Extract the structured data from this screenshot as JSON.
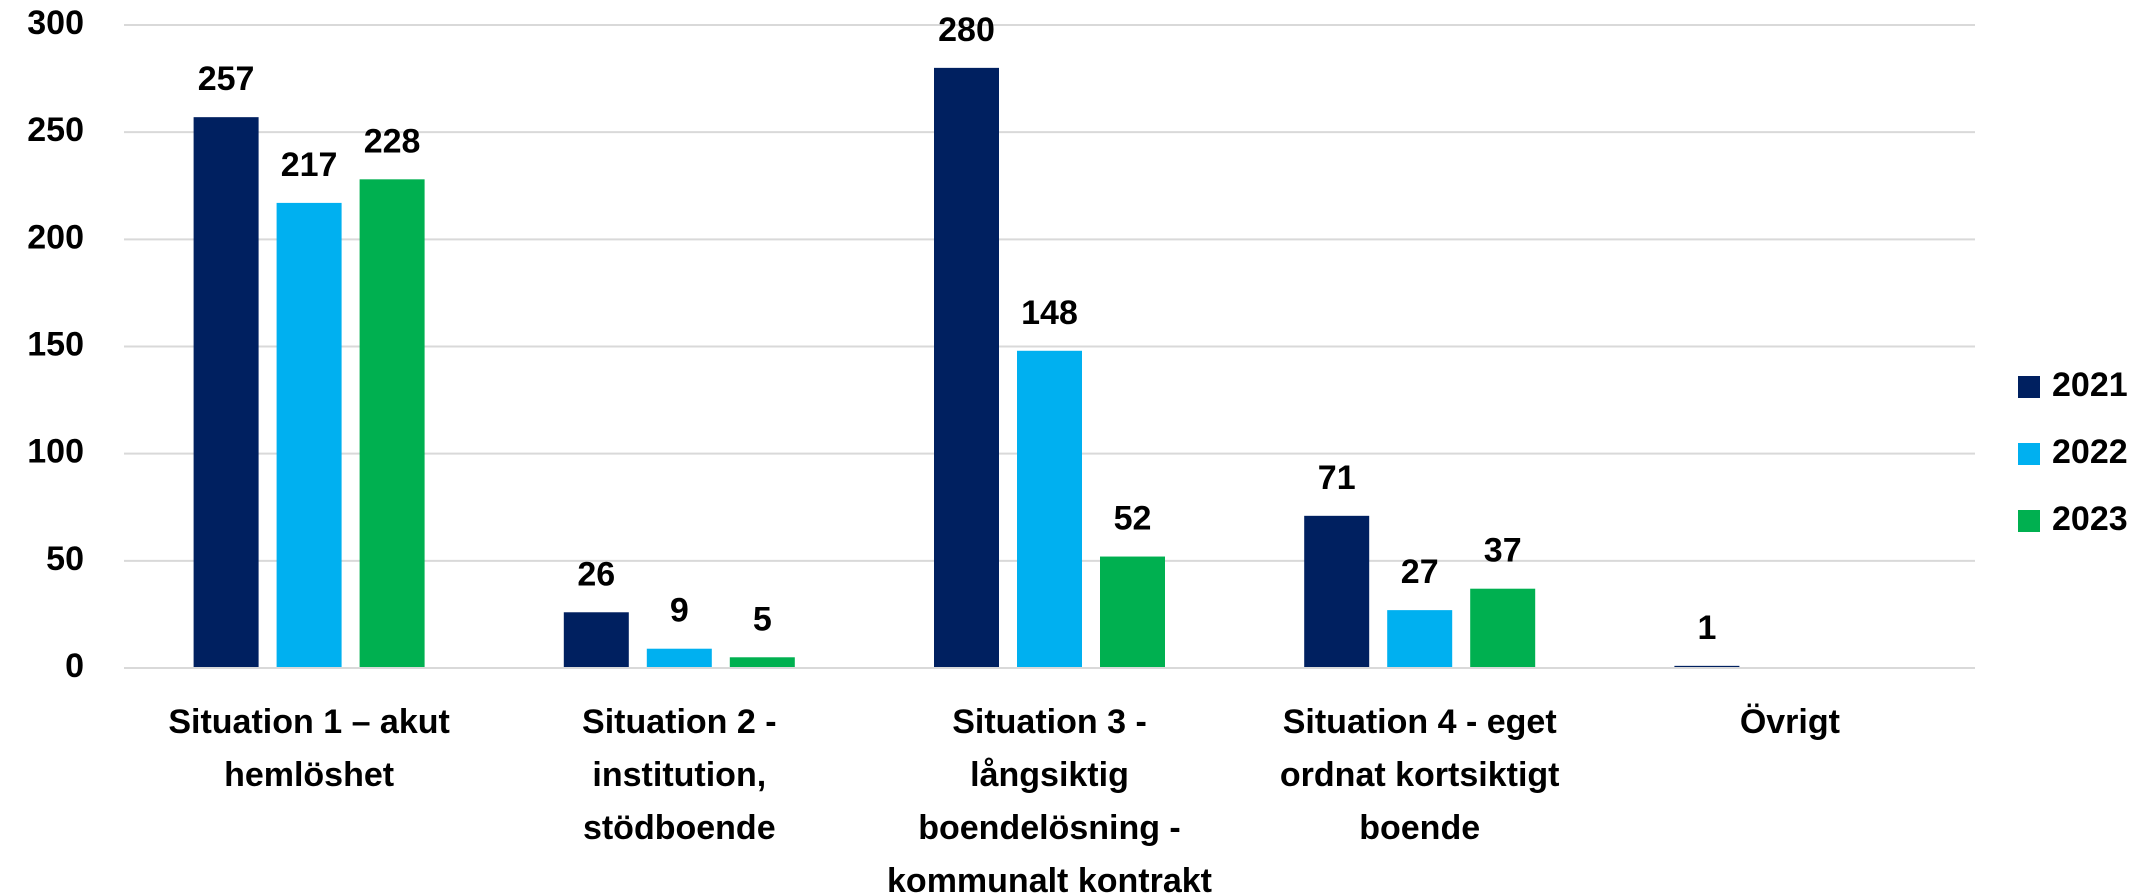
{
  "chart_data": {
    "type": "bar",
    "categories": [
      "Situation 1 – akut\nhemlöshet",
      "Situation 2 -\ninstitution,\nstödboende",
      "Situation 3 -\nlångsiktig\nboendelösning -\nkommunalt kontrakt",
      "Situation 4 - eget\nordnat kortsiktigt\nboende",
      "Övrigt"
    ],
    "series": [
      {
        "name": "2021",
        "color": "#002060",
        "values": [
          257,
          26,
          280,
          71,
          1
        ]
      },
      {
        "name": "2022",
        "color": "#00b0f0",
        "values": [
          217,
          9,
          148,
          27,
          null
        ]
      },
      {
        "name": "2023",
        "color": "#00b050",
        "values": [
          228,
          5,
          52,
          37,
          null
        ]
      }
    ],
    "ylim": [
      0,
      300
    ],
    "yticks": [
      0,
      50,
      100,
      150,
      200,
      250,
      300
    ],
    "grid": true,
    "legend": "right"
  }
}
